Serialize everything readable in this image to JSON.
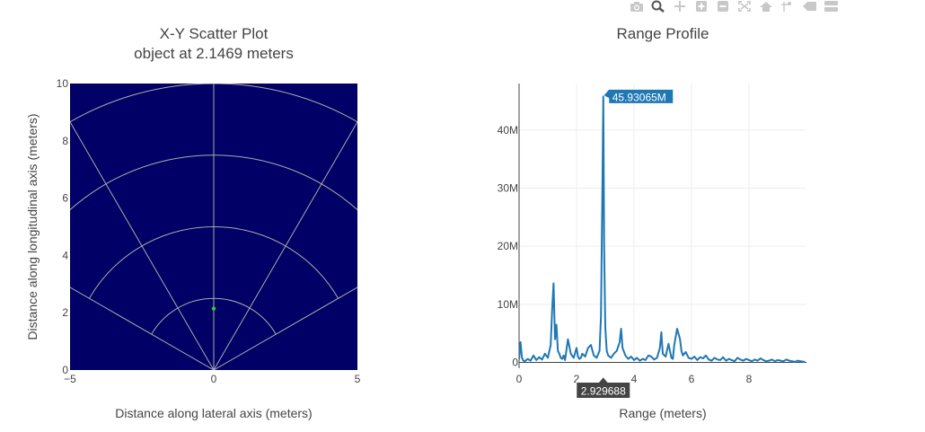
{
  "modebar": {
    "buttons": [
      {
        "name": "camera-icon"
      },
      {
        "name": "zoom-icon"
      },
      {
        "name": "pan-icon"
      },
      {
        "name": "zoom-in-icon"
      },
      {
        "name": "zoom-out-icon"
      },
      {
        "name": "autoscale-icon"
      },
      {
        "name": "home-icon"
      },
      {
        "name": "spike-lines-icon"
      },
      {
        "name": "hover-closest-icon"
      },
      {
        "name": "hover-compare-icon"
      }
    ]
  },
  "left_plot": {
    "title_line1": "X-Y Scatter Plot",
    "title_line2": "object at 2.1469 meters"
  },
  "right_plot": {
    "title": "Range Profile"
  },
  "chart_data": [
    {
      "type": "scatter",
      "title": "X-Y Scatter Plot",
      "subtitle": "object at 2.1469 meters",
      "xlabel": "Distance along lateral axis (meters)",
      "ylabel": "Distance along longitudinal axis (meters)",
      "xlim": [
        -5,
        5
      ],
      "ylim": [
        0,
        10
      ],
      "x_ticks": [
        -5,
        0,
        5
      ],
      "y_ticks": [
        0,
        2,
        4,
        6,
        8,
        10
      ],
      "background": "#000066",
      "grid_color": "#aaaaaa",
      "point_color": "#33cc33",
      "points": [
        {
          "x": 0,
          "y": 2.1469
        }
      ],
      "range_rings": [
        2.5,
        5,
        7.5,
        10
      ],
      "radial_lines_deg": [
        -60,
        -30,
        0,
        30,
        60
      ]
    },
    {
      "type": "line",
      "title": "Range Profile",
      "xlabel": "Range (meters)",
      "ylabel": "",
      "xlim": [
        0,
        10
      ],
      "ylim": [
        -1000000,
        48000000
      ],
      "x_ticks": [
        0,
        2,
        4,
        6,
        8
      ],
      "y_ticks": [
        0,
        10000000,
        20000000,
        30000000,
        40000000
      ],
      "y_tick_labels": [
        "0",
        "10M",
        "20M",
        "30M",
        "40M"
      ],
      "line_color": "#1f77b4",
      "peak": {
        "x": 2.929688,
        "y": 45930650,
        "label": "45.93065M",
        "x_label": "2.929688"
      },
      "series": [
        {
          "x": [
            0.0,
            0.05,
            0.1,
            0.15,
            0.2,
            0.3,
            0.4,
            0.5,
            0.6,
            0.7,
            0.8,
            0.9,
            1.0,
            1.1,
            1.15,
            1.2,
            1.25,
            1.3,
            1.35,
            1.4,
            1.45,
            1.5,
            1.55,
            1.6,
            1.7,
            1.8,
            1.9,
            2.0,
            2.05,
            2.1,
            2.15,
            2.2,
            2.3,
            2.4,
            2.5,
            2.6,
            2.7,
            2.8,
            2.85,
            2.9,
            2.93,
            2.96,
            3.0,
            3.05,
            3.1,
            3.2,
            3.3,
            3.4,
            3.5,
            3.55,
            3.6,
            3.7,
            3.8,
            3.9,
            4.0,
            4.1,
            4.2,
            4.3,
            4.4,
            4.5,
            4.6,
            4.7,
            4.8,
            4.9,
            4.95,
            5.0,
            5.1,
            5.2,
            5.3,
            5.35,
            5.4,
            5.5,
            5.6,
            5.65,
            5.7,
            5.8,
            5.9,
            6.0,
            6.1,
            6.2,
            6.3,
            6.4,
            6.5,
            6.6,
            6.7,
            6.8,
            6.9,
            7.0,
            7.1,
            7.2,
            7.3,
            7.4,
            7.5,
            7.6,
            7.7,
            7.8,
            7.9,
            8.0,
            8.1,
            8.2,
            8.3,
            8.4,
            8.5,
            8.6,
            8.7,
            8.8,
            8.9,
            9.0,
            9.1,
            9.2,
            9.3,
            9.4,
            9.5,
            9.6,
            9.7,
            9.8,
            9.9,
            9.95
          ],
          "values": [
            500000,
            3500000,
            800000,
            300000,
            200000,
            600000,
            300000,
            1200000,
            400000,
            900000,
            500000,
            1500000,
            800000,
            3000000,
            9000000,
            13600000,
            4000000,
            6500000,
            2000000,
            1500000,
            800000,
            600000,
            1200000,
            400000,
            4000000,
            1500000,
            800000,
            2500000,
            1000000,
            600000,
            800000,
            1500000,
            1000000,
            2500000,
            3000000,
            1200000,
            800000,
            2000000,
            8000000,
            30000000,
            45930650,
            20000000,
            6000000,
            2000000,
            1200000,
            800000,
            1500000,
            2000000,
            3500000,
            5800000,
            2500000,
            1200000,
            600000,
            1000000,
            400000,
            800000,
            300000,
            600000,
            400000,
            1200000,
            1000000,
            500000,
            800000,
            2500000,
            5200000,
            1500000,
            1000000,
            3200000,
            800000,
            600000,
            3000000,
            5800000,
            4000000,
            2000000,
            1200000,
            1800000,
            800000,
            600000,
            1000000,
            400000,
            900000,
            700000,
            1200000,
            500000,
            300000,
            800000,
            500000,
            400000,
            900000,
            300000,
            600000,
            400000,
            200000,
            800000,
            500000,
            300000,
            600000,
            400000,
            200000,
            500000,
            300000,
            700000,
            400000,
            200000,
            300000,
            500000,
            200000,
            400000,
            300000,
            200000,
            500000,
            300000,
            200000,
            100000,
            300000,
            200000,
            100000,
            150000
          ]
        }
      ]
    }
  ]
}
